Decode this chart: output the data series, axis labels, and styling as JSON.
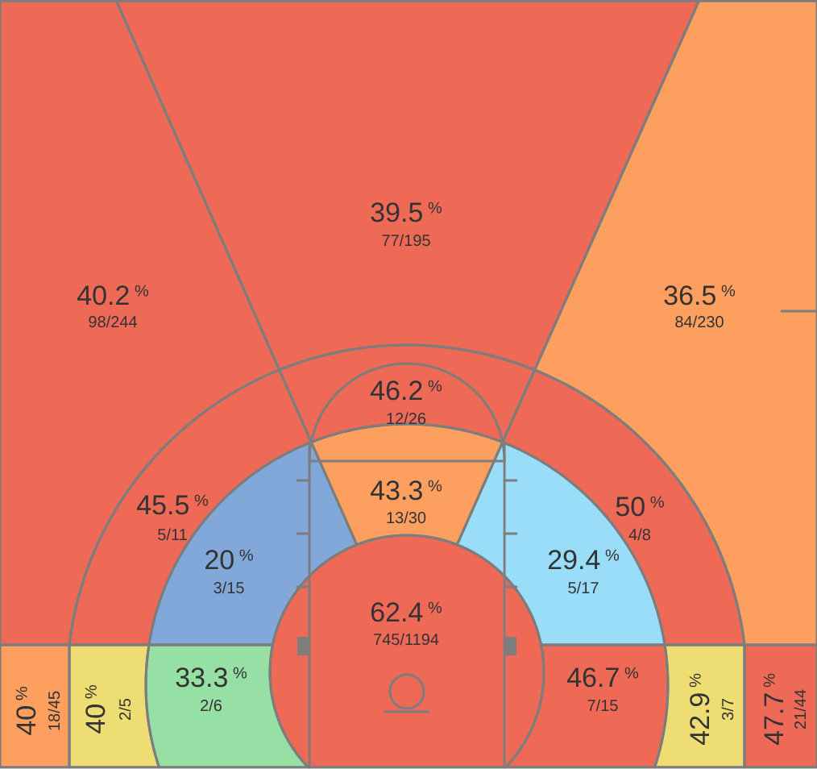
{
  "chart_data": {
    "type": "other",
    "ylabel": "%",
    "data_labels": true,
    "categories": [
      "77/195",
      "98/244",
      "84/230",
      "12/26",
      "13/30",
      "5/11",
      "4/8",
      "3/15",
      "5/17",
      "745/1194",
      "2/6",
      "7/15",
      "18/45",
      "2/5",
      "3/7",
      "21/44"
    ],
    "values": [
      39.5,
      40.2,
      36.5,
      46.2,
      43.3,
      45.5,
      50,
      20,
      29.4,
      62.4,
      33.3,
      46.7,
      40,
      40,
      42.9,
      47.7
    ],
    "colors": [
      "#ee6a56",
      "#ee6a56",
      "#fd9f5e",
      "#ee6a56",
      "#fd9f5e",
      "#ee6a56",
      "#ee6a56",
      "#82a8da",
      "#99ddf8",
      "#ee6a56",
      "#96e0a6",
      "#ee6a56",
      "#fd9f5e",
      "#eddd72",
      "#eddd72",
      "#ee6a56"
    ]
  }
}
